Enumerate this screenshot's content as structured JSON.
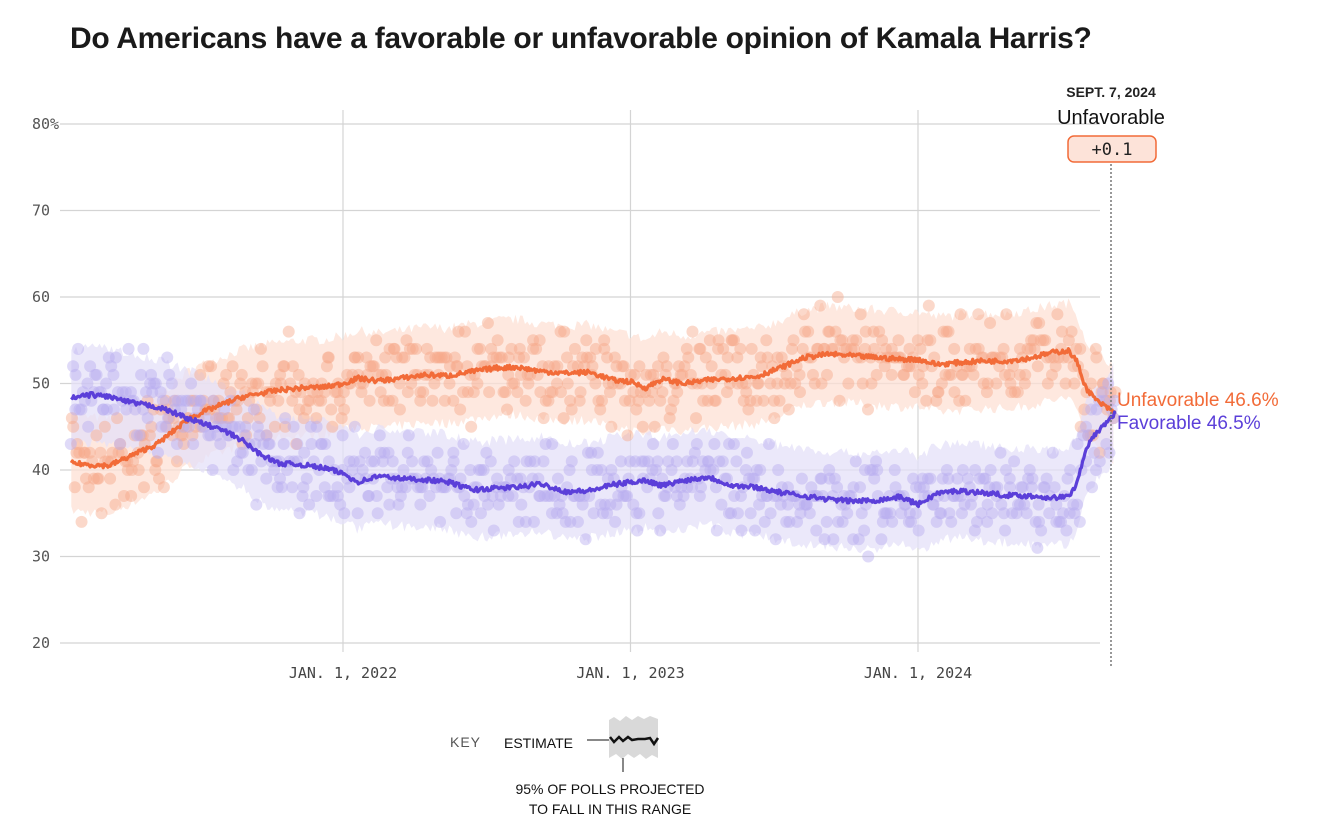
{
  "title": "Do Americans have a favorable or unfavorable opinion of Kamala Harris?",
  "chart_data": {
    "type": "line",
    "title": "Do Americans have a favorable or unfavorable opinion of Kamala Harris?",
    "xlabel": "",
    "ylabel": "",
    "ylim": [
      20,
      80
    ],
    "xlim": [
      "2021-01-21",
      "2024-09-07"
    ],
    "grid": true,
    "y_ticks": [
      {
        "value": 80,
        "label": "80%"
      },
      {
        "value": 70,
        "label": "70"
      },
      {
        "value": 60,
        "label": "60"
      },
      {
        "value": 50,
        "label": "50"
      },
      {
        "value": 40,
        "label": "40"
      },
      {
        "value": 30,
        "label": "30"
      },
      {
        "value": 20,
        "label": "20"
      }
    ],
    "x_ticks": [
      {
        "date": "2022-01-01",
        "label": "JAN. 1, 2022"
      },
      {
        "date": "2023-01-01",
        "label": "JAN. 1, 2023"
      },
      {
        "date": "2024-01-01",
        "label": "JAN. 1, 2024"
      }
    ],
    "band_halfwidth": 5.5,
    "series": [
      {
        "name": "Unfavorable",
        "color": "#f26b38",
        "band_color": "#fde0d4",
        "dot_color": "#f7a88a",
        "end_label": "Unfavorable 46.6%",
        "end_value": 46.6,
        "points": [
          [
            "2021-01-21",
            40.8
          ],
          [
            "2021-02-15",
            40.6
          ],
          [
            "2021-03-10",
            40.5
          ],
          [
            "2021-04-01",
            41.4
          ],
          [
            "2021-04-20",
            42.2
          ],
          [
            "2021-05-10",
            43.0
          ],
          [
            "2021-06-01",
            44.6
          ],
          [
            "2021-06-20",
            46.0
          ],
          [
            "2021-07-10",
            46.8
          ],
          [
            "2021-08-01",
            47.6
          ],
          [
            "2021-08-25",
            48.4
          ],
          [
            "2021-09-15",
            48.8
          ],
          [
            "2021-10-10",
            49.2
          ],
          [
            "2021-11-10",
            49.5
          ],
          [
            "2021-12-10",
            49.6
          ],
          [
            "2022-01-01",
            50.0
          ],
          [
            "2022-01-20",
            50.6
          ],
          [
            "2022-02-15",
            50.3
          ],
          [
            "2022-03-15",
            50.6
          ],
          [
            "2022-04-15",
            51.0
          ],
          [
            "2022-05-15",
            50.9
          ],
          [
            "2022-06-15",
            51.4
          ],
          [
            "2022-07-15",
            51.8
          ],
          [
            "2022-08-10",
            51.9
          ],
          [
            "2022-09-10",
            51.4
          ],
          [
            "2022-10-10",
            51.2
          ],
          [
            "2022-11-10",
            51.3
          ],
          [
            "2022-12-10",
            50.4
          ],
          [
            "2023-01-01",
            50.2
          ],
          [
            "2023-01-20",
            49.5
          ],
          [
            "2023-02-10",
            50.5
          ],
          [
            "2023-03-10",
            50.0
          ],
          [
            "2023-04-10",
            50.4
          ],
          [
            "2023-05-10",
            50.6
          ],
          [
            "2023-06-10",
            50.8
          ],
          [
            "2023-07-10",
            51.8
          ],
          [
            "2023-08-10",
            53.0
          ],
          [
            "2023-09-10",
            53.4
          ],
          [
            "2023-10-10",
            53.2
          ],
          [
            "2023-11-10",
            53.0
          ],
          [
            "2023-12-10",
            52.8
          ],
          [
            "2024-01-01",
            52.8
          ],
          [
            "2024-01-25",
            52.2
          ],
          [
            "2024-02-20",
            52.4
          ],
          [
            "2024-03-20",
            52.6
          ],
          [
            "2024-04-20",
            52.6
          ],
          [
            "2024-05-20",
            52.9
          ],
          [
            "2024-06-20",
            53.6
          ],
          [
            "2024-07-10",
            53.8
          ],
          [
            "2024-07-21",
            52.5
          ],
          [
            "2024-08-01",
            49.5
          ],
          [
            "2024-08-15",
            48.0
          ],
          [
            "2024-08-28",
            47.2
          ],
          [
            "2024-09-07",
            46.6
          ]
        ]
      },
      {
        "name": "Favorable",
        "color": "#5b3fd9",
        "band_color": "#e4e0f8",
        "dot_color": "#b7acf0",
        "end_label": "Favorable 46.5%",
        "end_value": 46.5,
        "points": [
          [
            "2021-01-21",
            48.3
          ],
          [
            "2021-02-15",
            48.7
          ],
          [
            "2021-03-10",
            48.5
          ],
          [
            "2021-04-01",
            47.9
          ],
          [
            "2021-04-20",
            47.6
          ],
          [
            "2021-05-10",
            47.3
          ],
          [
            "2021-06-01",
            46.6
          ],
          [
            "2021-06-20",
            45.9
          ],
          [
            "2021-07-10",
            45.3
          ],
          [
            "2021-08-01",
            44.6
          ],
          [
            "2021-08-25",
            43.5
          ],
          [
            "2021-09-15",
            42.0
          ],
          [
            "2021-10-10",
            40.8
          ],
          [
            "2021-11-10",
            40.6
          ],
          [
            "2021-12-10",
            40.2
          ],
          [
            "2022-01-01",
            39.6
          ],
          [
            "2022-01-20",
            38.6
          ],
          [
            "2022-02-15",
            39.3
          ],
          [
            "2022-03-15",
            39.0
          ],
          [
            "2022-04-15",
            38.9
          ],
          [
            "2022-05-15",
            38.6
          ],
          [
            "2022-06-15",
            37.7
          ],
          [
            "2022-07-15",
            37.9
          ],
          [
            "2022-08-10",
            38.0
          ],
          [
            "2022-09-10",
            38.4
          ],
          [
            "2022-10-10",
            37.5
          ],
          [
            "2022-11-10",
            37.6
          ],
          [
            "2022-12-10",
            38.3
          ],
          [
            "2023-01-01",
            38.6
          ],
          [
            "2023-01-20",
            38.8
          ],
          [
            "2023-02-10",
            38.2
          ],
          [
            "2023-03-10",
            38.8
          ],
          [
            "2023-04-10",
            39.2
          ],
          [
            "2023-05-10",
            38.2
          ],
          [
            "2023-06-10",
            38.0
          ],
          [
            "2023-07-10",
            37.4
          ],
          [
            "2023-08-10",
            37.0
          ],
          [
            "2023-09-10",
            36.6
          ],
          [
            "2023-10-10",
            36.4
          ],
          [
            "2023-11-10",
            36.5
          ],
          [
            "2023-12-10",
            36.9
          ],
          [
            "2024-01-01",
            36.0
          ],
          [
            "2024-01-25",
            37.3
          ],
          [
            "2024-02-20",
            37.6
          ],
          [
            "2024-03-20",
            37.4
          ],
          [
            "2024-04-20",
            37.1
          ],
          [
            "2024-05-20",
            37.0
          ],
          [
            "2024-06-20",
            36.8
          ],
          [
            "2024-07-10",
            36.9
          ],
          [
            "2024-07-21",
            38.5
          ],
          [
            "2024-08-01",
            42.5
          ],
          [
            "2024-08-15",
            44.3
          ],
          [
            "2024-08-28",
            45.6
          ],
          [
            "2024-09-07",
            46.5
          ]
        ]
      }
    ],
    "annotation": {
      "date_label": "SEPT. 7, 2024",
      "leader": "Unfavorable",
      "margin": "+0.1"
    }
  },
  "key": {
    "label": "KEY",
    "estimate": "ESTIMATE",
    "range_line1": "95% OF POLLS PROJECTED",
    "range_line2": "TO FALL IN THIS RANGE"
  },
  "colors": {
    "unfavorable": "#f26b38",
    "favorable": "#5b3fd9",
    "badge_fill": "#fde3d9",
    "badge_stroke": "#f26b38",
    "grid": "#d4d4d4"
  }
}
